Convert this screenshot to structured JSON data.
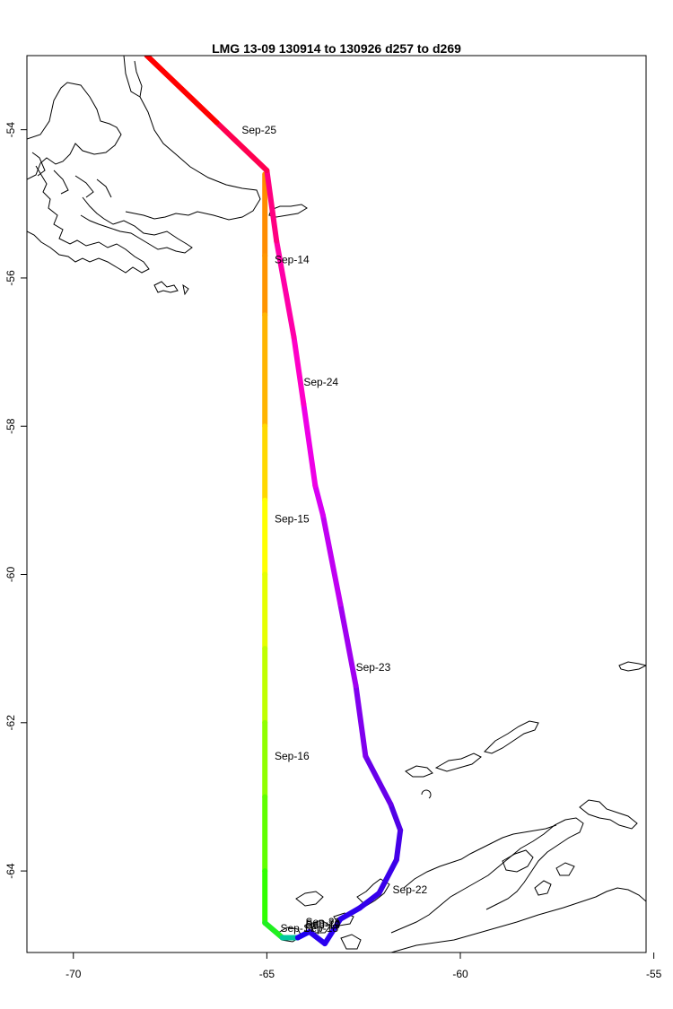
{
  "title": "LMG   13-09    130914 to 130926    d257 to d269",
  "chart_data": {
    "type": "line",
    "title": "LMG   13-09    130914 to 130926    d257 to d269",
    "xlabel": "",
    "ylabel": "",
    "xlim": [
      -71.2,
      -55.2
    ],
    "ylim": [
      -65.1,
      -53.0
    ],
    "x_ticks": [
      -70,
      -65,
      -60,
      -55
    ],
    "x_tick_labels": [
      "-70",
      "-65",
      "-60",
      "-55"
    ],
    "y_ticks": [
      -54,
      -56,
      -58,
      -60,
      -62,
      -64
    ],
    "y_tick_labels": [
      "-54",
      "-56",
      "-58",
      "-60",
      "-62",
      "-64"
    ],
    "grid": false,
    "track": [
      {
        "lon": -65.05,
        "lat": -54.6,
        "color": "#ff8c00"
      },
      {
        "lon": -65.05,
        "lat": -55.7,
        "color": "#ff8c00"
      },
      {
        "lon": -65.05,
        "lat": -56.5,
        "color": "#ff9400"
      },
      {
        "lon": -65.05,
        "lat": -58.0,
        "color": "#ffb400"
      },
      {
        "lon": -65.05,
        "lat": -59.0,
        "color": "#ffd800"
      },
      {
        "lon": -65.05,
        "lat": -60.0,
        "color": "#ffff00"
      },
      {
        "lon": -65.05,
        "lat": -61.0,
        "color": "#e6ff00"
      },
      {
        "lon": -65.05,
        "lat": -62.0,
        "color": "#c0ff00"
      },
      {
        "lon": -65.05,
        "lat": -63.0,
        "color": "#90ff00"
      },
      {
        "lon": -65.05,
        "lat": -64.0,
        "color": "#60ff00"
      },
      {
        "lon": -65.05,
        "lat": -64.7,
        "color": "#30ff00"
      },
      {
        "lon": -64.6,
        "lat": -64.9,
        "color": "#20f020"
      },
      {
        "lon": -64.2,
        "lat": -64.9,
        "color": "#00c8a0"
      },
      {
        "lon": -63.9,
        "lat": -64.82,
        "color": "#1e00f0"
      },
      {
        "lon": -63.5,
        "lat": -64.98,
        "color": "#2a00f0"
      },
      {
        "lon": -63.1,
        "lat": -64.65,
        "color": "#2a00f0"
      },
      {
        "lon": -62.6,
        "lat": -64.5,
        "color": "#2e00ee"
      },
      {
        "lon": -62.1,
        "lat": -64.3,
        "color": "#3400ec"
      },
      {
        "lon": -61.65,
        "lat": -63.85,
        "color": "#3a00ea"
      },
      {
        "lon": -61.55,
        "lat": -63.45,
        "color": "#4400e8"
      },
      {
        "lon": -61.8,
        "lat": -63.1,
        "color": "#5000e6"
      },
      {
        "lon": -62.45,
        "lat": -62.45,
        "color": "#6800ea"
      },
      {
        "lon": -62.7,
        "lat": -61.5,
        "color": "#8000ee"
      },
      {
        "lon": -63.1,
        "lat": -60.4,
        "color": "#a000f0"
      },
      {
        "lon": -63.55,
        "lat": -59.2,
        "color": "#c000f2"
      },
      {
        "lon": -63.75,
        "lat": -58.8,
        "color": "#d800f4"
      },
      {
        "lon": -64.05,
        "lat": -57.7,
        "color": "#ee00e6"
      },
      {
        "lon": -64.3,
        "lat": -56.8,
        "color": "#ff00c8"
      },
      {
        "lon": -64.75,
        "lat": -55.5,
        "color": "#ff00a8"
      },
      {
        "lon": -65.0,
        "lat": -54.55,
        "color": "#ff0080"
      },
      {
        "lon": -66.3,
        "lat": -53.9,
        "color": "#ff0050"
      },
      {
        "lon": -68.1,
        "lat": -53.0,
        "color": "#ff0000"
      }
    ],
    "date_labels": [
      {
        "text": "Sep-25",
        "lon": -65.65,
        "lat": -54.05
      },
      {
        "text": "Sep-14",
        "lon": -64.8,
        "lat": -55.8
      },
      {
        "text": "Sep-24",
        "lon": -64.05,
        "lat": -57.45
      },
      {
        "text": "Sep-15",
        "lon": -64.8,
        "lat": -59.3
      },
      {
        "text": "Sep-23",
        "lon": -62.7,
        "lat": -61.3
      },
      {
        "text": "Sep-16",
        "lon": -64.8,
        "lat": -62.5
      },
      {
        "text": "Sep-22",
        "lon": -61.75,
        "lat": -64.3
      },
      {
        "text": "Sep-17",
        "lon": -64.65,
        "lat": -64.82
      },
      {
        "text": "Sep-18",
        "lon": -64.05,
        "lat": -64.82
      },
      {
        "text": "Sep-19",
        "lon": -64.0,
        "lat": -64.78
      },
      {
        "text": "Sep-20",
        "lon": -64.0,
        "lat": -64.76
      },
      {
        "text": "Sep-21",
        "lon": -64.0,
        "lat": -64.74
      }
    ]
  }
}
